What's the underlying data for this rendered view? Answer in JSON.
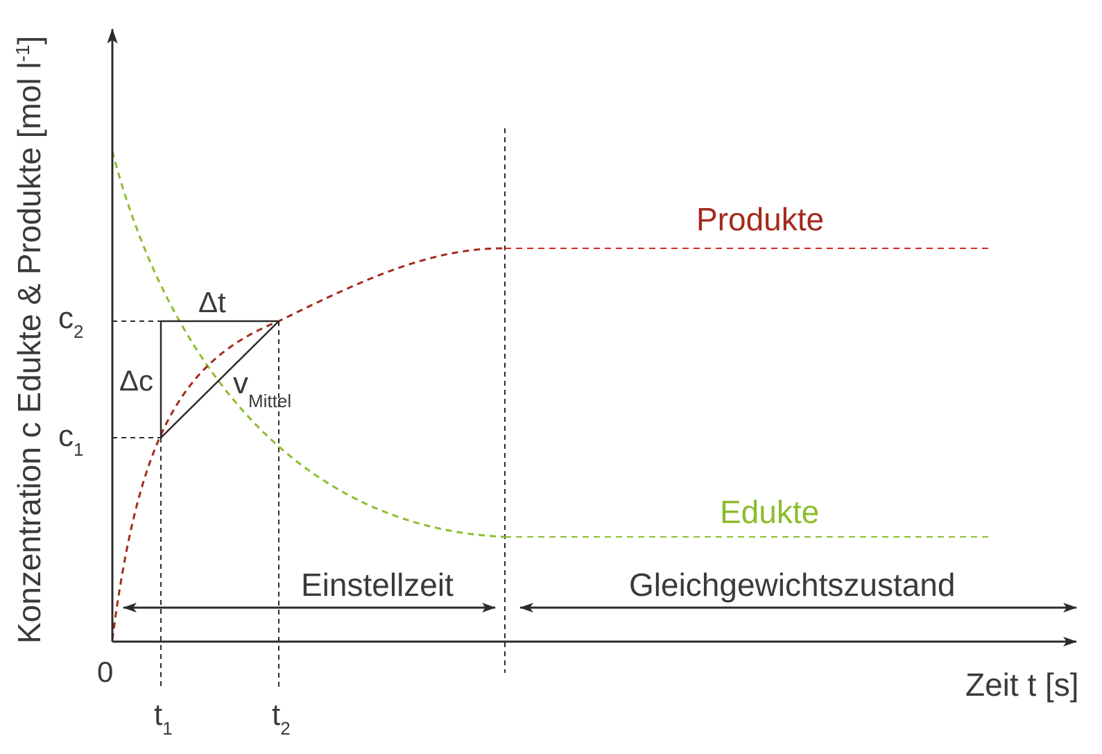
{
  "labels": {
    "y_axis": "Konzentration c Edukte & Produkte [mol l",
    "y_axis_sup": "-1",
    "y_axis_close": "]",
    "x_axis": "Zeit t [s]",
    "origin": "0",
    "c1_base": "c",
    "c1_sub": "1",
    "c2_base": "c",
    "c2_sub": "2",
    "t1_base": "t",
    "t1_sub": "1",
    "t2_base": "t",
    "t2_sub": "2",
    "delta_t": "Δt",
    "delta_c": "Δc",
    "v_base": "v",
    "v_sub": "Mittel",
    "produkte": "Produkte",
    "edukte": "Edukte",
    "einstellzeit": "Einstellzeit",
    "gleichgewicht": "Gleichgewichtszustand"
  },
  "colors": {
    "axis": "#2b2b2b",
    "text": "#3a3a3a",
    "produkte": "#a32a1c",
    "produkte_plateau": "#d62a22",
    "edukte": "#8bbd2c"
  }
}
